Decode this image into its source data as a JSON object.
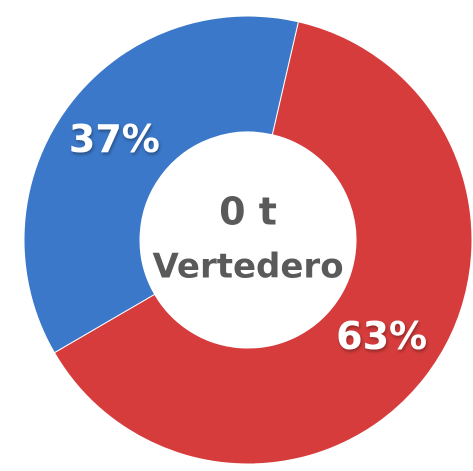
{
  "chart_data": {
    "type": "donut",
    "categories": [
      null,
      null
    ],
    "values": [
      63,
      37
    ],
    "value_labels": [
      "63%",
      "37%"
    ],
    "colors": [
      "#d63c3c",
      "#3b78c9"
    ],
    "center_value": "0 t",
    "center_label": "Vertedero"
  }
}
